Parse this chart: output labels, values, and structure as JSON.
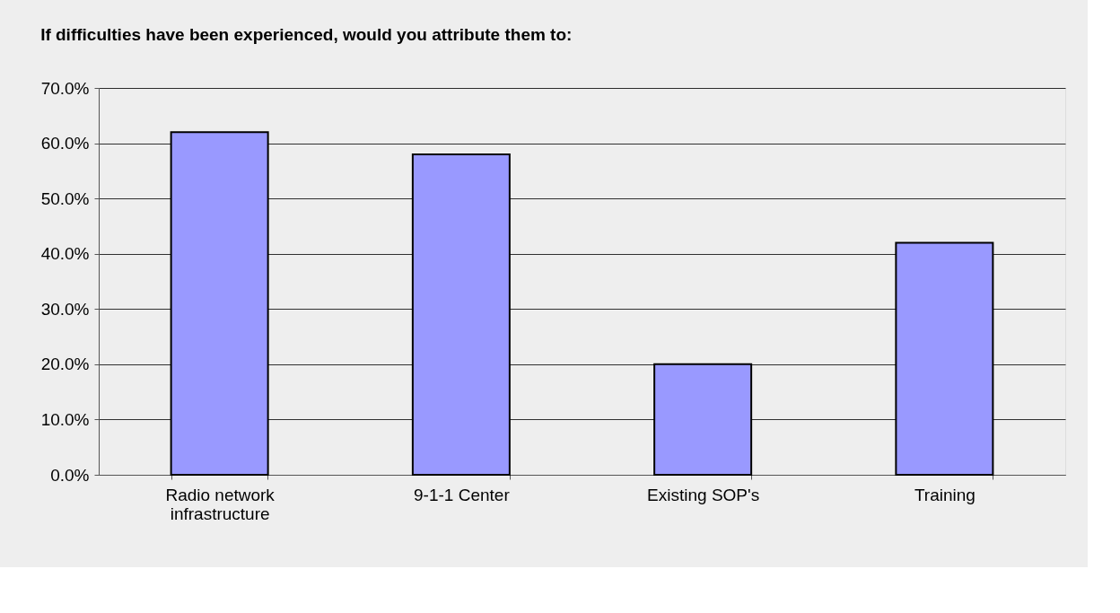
{
  "chart_data": {
    "type": "bar",
    "title": "If difficulties have been experienced, would you attribute them to:",
    "categories": [
      "Radio network infrastructure",
      "9-1-1 Center",
      "Existing SOP's",
      "Training"
    ],
    "values": [
      62,
      58,
      20,
      42
    ],
    "color": "#9999ff",
    "ylim": [
      0,
      70
    ],
    "yticks": [
      {
        "value": 0,
        "label": "0.0%"
      },
      {
        "value": 10,
        "label": "10.0%"
      },
      {
        "value": 20,
        "label": "20.0%"
      },
      {
        "value": 30,
        "label": "30.0%"
      },
      {
        "value": 40,
        "label": "40.0%"
      },
      {
        "value": 50,
        "label": "50.0%"
      },
      {
        "value": 60,
        "label": "60.0%"
      },
      {
        "value": 70,
        "label": "70.0%"
      }
    ],
    "grid": "y"
  }
}
